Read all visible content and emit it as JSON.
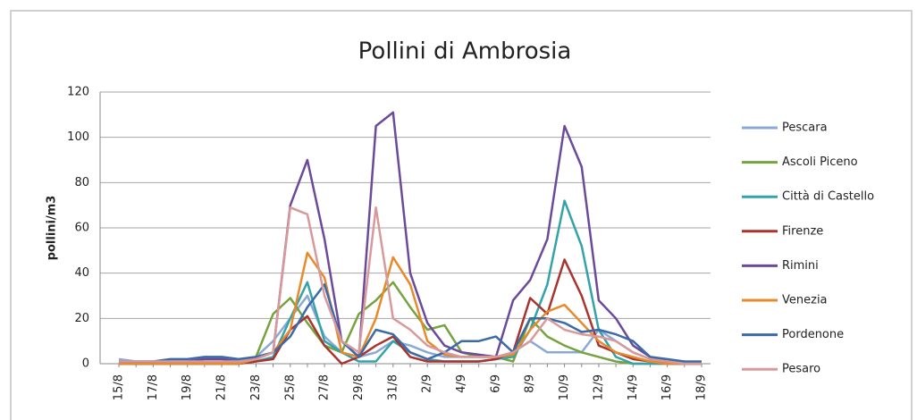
{
  "chart_data": {
    "type": "line",
    "title": "Pollini di Ambrosia",
    "y_label": "pollini/m3",
    "categories": [
      "15/8",
      null,
      "17/8",
      null,
      "19/8",
      null,
      "21/8",
      null,
      "23/8",
      null,
      "25/8",
      null,
      "27/8",
      null,
      "29/8",
      null,
      "31/8",
      null,
      "2/9",
      null,
      "4/9",
      null,
      "6/9",
      null,
      "8/9",
      null,
      "10/9",
      null,
      "12/9",
      null,
      "14/9",
      null,
      "16/9",
      null,
      "18/9"
    ],
    "ylim": [
      0,
      120
    ],
    "yticks": [
      0,
      20,
      40,
      60,
      80,
      100,
      120
    ],
    "grid": true,
    "legend": "right",
    "series": [
      {
        "name": "Pescara",
        "color": "#8aa9d6",
        "values": [
          2,
          1,
          1,
          1,
          1,
          2,
          2,
          2,
          3,
          10,
          20,
          30,
          12,
          5,
          3,
          5,
          10,
          8,
          5,
          3,
          3,
          3,
          3,
          5,
          10,
          5,
          5,
          5,
          15,
          10,
          5,
          2,
          1,
          0,
          0
        ]
      },
      {
        "name": "Ascoli Piceno",
        "color": "#77a33e",
        "values": [
          0,
          0,
          0,
          0,
          0,
          0,
          0,
          0,
          3,
          22,
          29,
          18,
          8,
          5,
          22,
          28,
          36,
          25,
          15,
          17,
          5,
          3,
          3,
          1,
          20,
          12,
          8,
          5,
          3,
          1,
          0,
          0,
          0,
          0,
          0
        ]
      },
      {
        "name": "Città di Castello",
        "color": "#33a3a8",
        "values": [
          0,
          0,
          0,
          0,
          0,
          0,
          0,
          0,
          1,
          3,
          20,
          36,
          10,
          5,
          1,
          1,
          10,
          5,
          2,
          1,
          1,
          1,
          2,
          3,
          15,
          35,
          72,
          52,
          15,
          3,
          0,
          0,
          0,
          0,
          0
        ]
      },
      {
        "name": "Firenze",
        "color": "#a8332f",
        "values": [
          0,
          0,
          0,
          0,
          0,
          0,
          0,
          0,
          1,
          2,
          15,
          21,
          8,
          0,
          3,
          8,
          12,
          3,
          1,
          1,
          1,
          1,
          2,
          5,
          29,
          22,
          46,
          30,
          8,
          5,
          2,
          1,
          0,
          0,
          0
        ]
      },
      {
        "name": "Rimini",
        "color": "#6b4a9a",
        "values": [
          1,
          0,
          0,
          1,
          1,
          2,
          2,
          1,
          2,
          5,
          70,
          90,
          55,
          10,
          3,
          105,
          111,
          40,
          18,
          8,
          5,
          4,
          3,
          28,
          37,
          55,
          105,
          87,
          28,
          20,
          8,
          3,
          1,
          0,
          0
        ]
      },
      {
        "name": "Venezia",
        "color": "#e8892b",
        "values": [
          0,
          0,
          0,
          0,
          0,
          0,
          0,
          0,
          2,
          5,
          15,
          49,
          38,
          5,
          3,
          20,
          47,
          35,
          10,
          4,
          3,
          3,
          3,
          4,
          15,
          23,
          26,
          18,
          10,
          5,
          3,
          1,
          0,
          0,
          0
        ]
      },
      {
        "name": "Pordenone",
        "color": "#3a6aa8",
        "values": [
          1,
          1,
          1,
          2,
          2,
          3,
          3,
          2,
          3,
          5,
          12,
          25,
          35,
          10,
          3,
          15,
          13,
          5,
          2,
          5,
          10,
          10,
          12,
          5,
          20,
          20,
          18,
          14,
          15,
          13,
          10,
          3,
          2,
          1,
          1
        ]
      },
      {
        "name": "Pesaro",
        "color": "#d8999a",
        "values": [
          1,
          1,
          1,
          1,
          1,
          1,
          1,
          1,
          2,
          5,
          69,
          66,
          30,
          10,
          5,
          69,
          20,
          15,
          8,
          5,
          3,
          3,
          3,
          5,
          10,
          20,
          15,
          13,
          12,
          10,
          5,
          2,
          1,
          0,
          0
        ]
      }
    ]
  }
}
